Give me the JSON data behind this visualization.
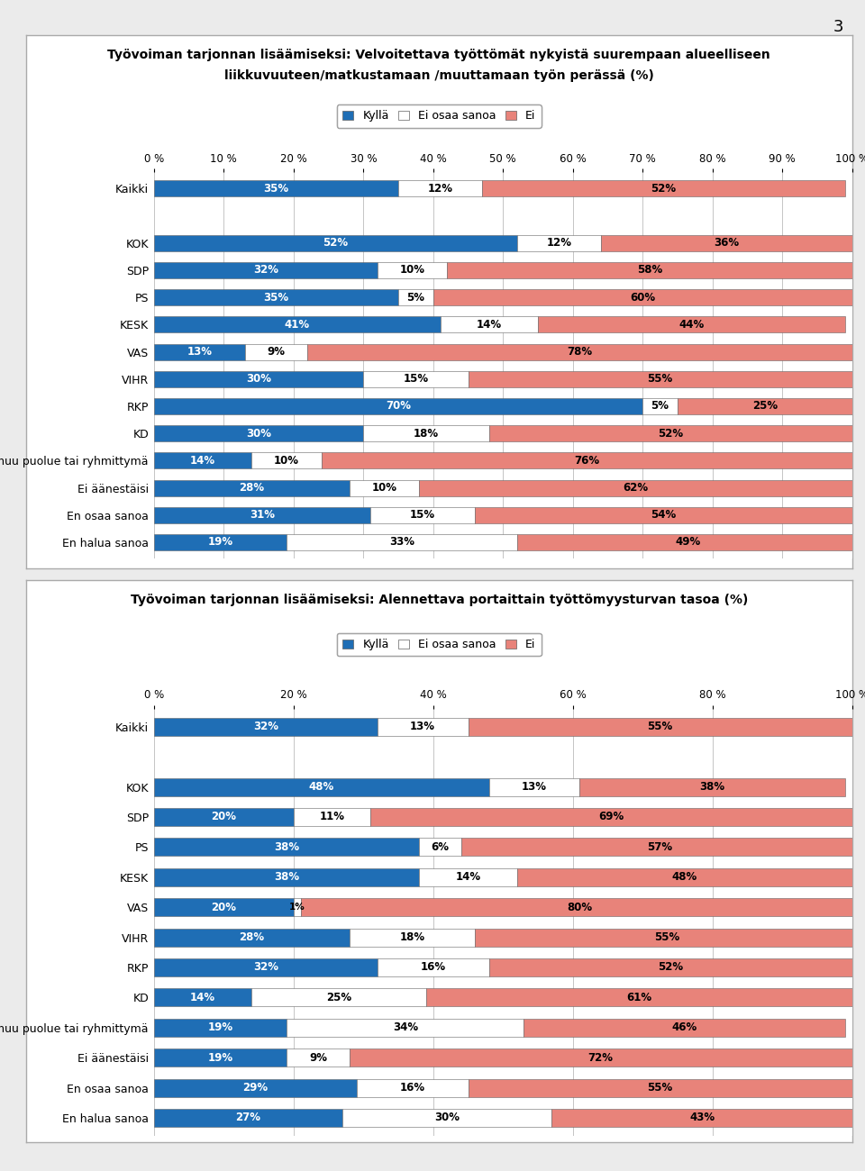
{
  "chart1": {
    "title1": "Työvoiman tarjonnan lisäämiseksi: Velvoitettava työttömät nykyistä suurempaan alueelliseen",
    "title2": "liikkuvuuteen/matkustamaan /muuttamaan työn perässä (%)",
    "categories": [
      "Kaikki",
      "",
      "KOK",
      "SDP",
      "PS",
      "KESK",
      "VAS",
      "VIHR",
      "RKP",
      "KD",
      "Joku muu puolue tai ryhmittymä",
      "Ei äänestäisi",
      "En osaa sanoa",
      "En halua sanoa"
    ],
    "kylla": [
      35,
      0,
      52,
      32,
      35,
      41,
      13,
      30,
      70,
      30,
      14,
      28,
      31,
      19
    ],
    "ei_osaa": [
      12,
      0,
      12,
      10,
      5,
      14,
      9,
      15,
      5,
      18,
      10,
      10,
      15,
      33
    ],
    "ei": [
      52,
      0,
      36,
      58,
      60,
      44,
      78,
      55,
      25,
      52,
      76,
      62,
      54,
      49
    ],
    "xticks": [
      0,
      10,
      20,
      30,
      40,
      50,
      60,
      70,
      80,
      90,
      100
    ]
  },
  "chart2": {
    "title1": "Työvoiman tarjonnan lisäämiseksi: Alennettava portaittain työttömyysturvan tasoa (%)",
    "title2": "",
    "categories": [
      "Kaikki",
      "",
      "KOK",
      "SDP",
      "PS",
      "KESK",
      "VAS",
      "VIHR",
      "RKP",
      "KD",
      "Joku muu puolue tai ryhmittymä",
      "Ei äänestäisi",
      "En osaa sanoa",
      "En halua sanoa"
    ],
    "kylla": [
      32,
      0,
      48,
      20,
      38,
      38,
      20,
      28,
      32,
      14,
      19,
      19,
      29,
      27
    ],
    "ei_osaa": [
      13,
      0,
      13,
      11,
      6,
      14,
      1,
      18,
      16,
      25,
      34,
      9,
      16,
      30
    ],
    "ei": [
      55,
      0,
      38,
      69,
      57,
      48,
      80,
      55,
      52,
      61,
      46,
      72,
      55,
      43
    ],
    "xticks": [
      0,
      20,
      40,
      60,
      80,
      100
    ]
  },
  "color_kylla": "#1F6EB5",
  "color_ei_osaa": "#FFFFFF",
  "color_ei": "#E8837A",
  "bar_height": 0.6,
  "legend_labels": [
    "Kyllä",
    "Ei osaa sanoa",
    "Ei"
  ],
  "page_number": "3",
  "bg_color": "#EBEBEB",
  "box_color": "#FFFFFF",
  "box_edge_color": "#AAAAAA"
}
